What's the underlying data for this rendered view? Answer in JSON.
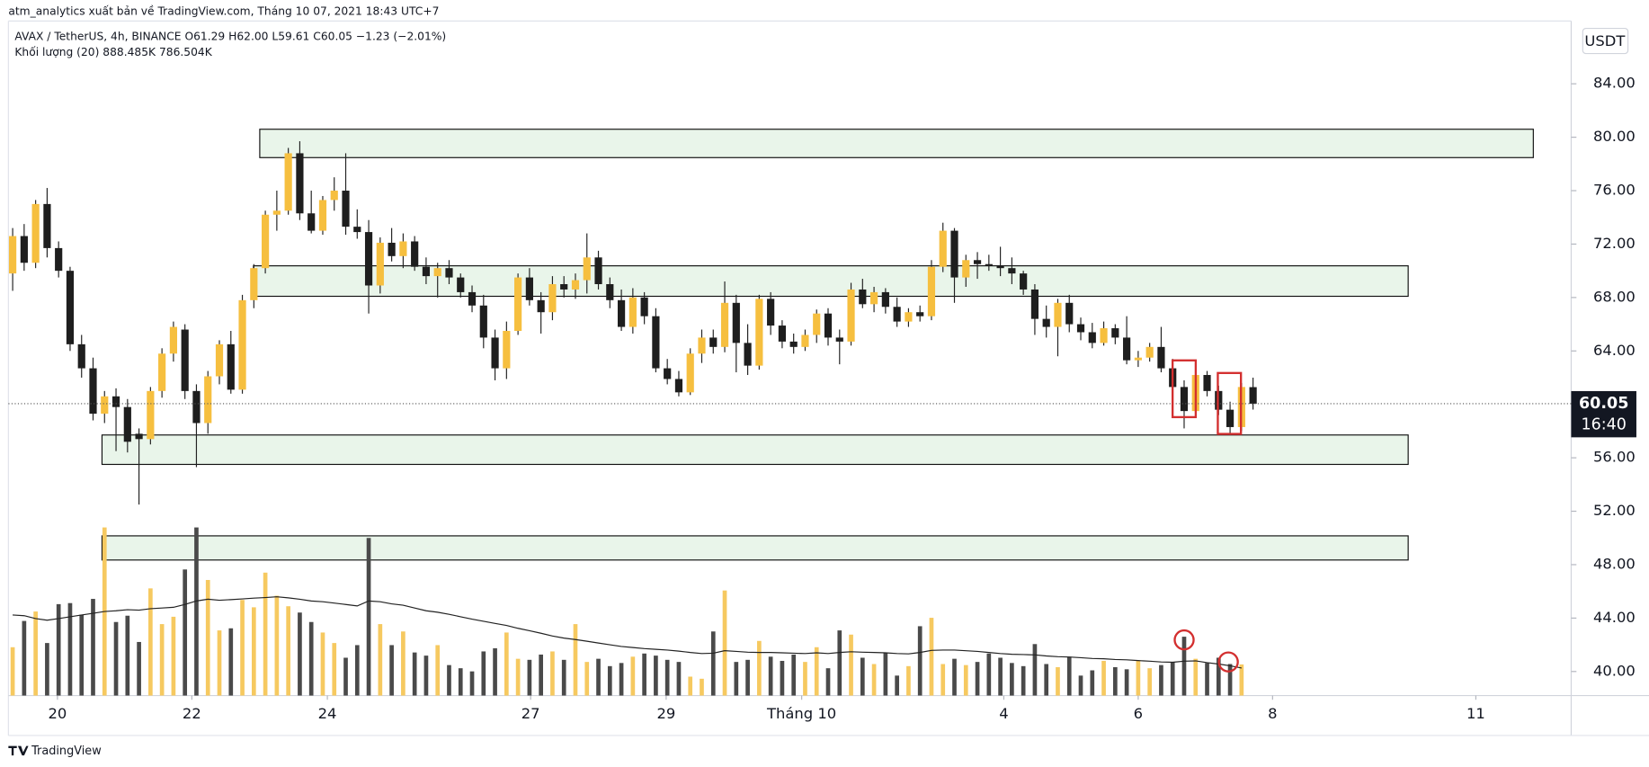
{
  "chart_data": {
    "type": "candlestick",
    "header": "atm_analytics xuất bản về TradingView.com, Tháng 10 07, 2021 18:43 UTC+7",
    "legend": "AVAX / TetherUS, 4h, BINANCE  O61.29 H62.00 L59.61 C60.05 −1.23 (−2.01%)",
    "volume_legend": "Khối lượng (20)  888.485K  786.504K",
    "currency": "USDT",
    "last_price_label": "60.05",
    "countdown": "16:40",
    "brand": "TradingView",
    "up_color": "#f6bf3f",
    "down_color": "#1e1e1e",
    "up_volume_color": "#f6c960",
    "down_volume_color": "#4a4a4a",
    "ma_color": "#222222",
    "ylim": [
      38.2,
      88.7
    ],
    "yticks": [
      {
        "value": 40,
        "label": "40.00"
      },
      {
        "value": 44,
        "label": "44.00"
      },
      {
        "value": 48,
        "label": "48.00"
      },
      {
        "value": 52,
        "label": "52.00"
      },
      {
        "value": 56,
        "label": "56.00"
      },
      {
        "value": 60,
        "label": "60.00"
      },
      {
        "value": 64,
        "label": "64.00"
      },
      {
        "value": 68,
        "label": "68.00"
      },
      {
        "value": 72,
        "label": "72.00"
      },
      {
        "value": 76,
        "label": "76.00"
      },
      {
        "value": 80,
        "label": "80.00"
      },
      {
        "value": 84,
        "label": "84.00"
      }
    ],
    "xlim": [
      -0.37,
      135.7
    ],
    "xticks": [
      {
        "value": 3.9,
        "label": "20"
      },
      {
        "value": 15.6,
        "label": "22"
      },
      {
        "value": 27.4,
        "label": "24"
      },
      {
        "value": 45.1,
        "label": "27"
      },
      {
        "value": 56.9,
        "label": "29"
      },
      {
        "value": 68.7,
        "label": "Tháng 10"
      },
      {
        "value": 86.3,
        "label": "4"
      },
      {
        "value": 98.0,
        "label": "6"
      },
      {
        "value": 109.7,
        "label": "8"
      },
      {
        "value": 127.4,
        "label": "11"
      }
    ],
    "volume_ylim": [
      0,
      6000
    ],
    "ohlc": [
      [
        69.8,
        73.2,
        68.5,
        72.6
      ],
      [
        72.6,
        73.5,
        70.0,
        70.6
      ],
      [
        70.6,
        75.3,
        70.2,
        75.0
      ],
      [
        75.0,
        76.2,
        71.0,
        71.7
      ],
      [
        71.7,
        72.2,
        69.5,
        70.0
      ],
      [
        70.0,
        70.3,
        64.0,
        64.5
      ],
      [
        64.5,
        65.2,
        62.0,
        62.7
      ],
      [
        62.7,
        63.5,
        58.8,
        59.3
      ],
      [
        59.3,
        61.0,
        58.6,
        60.6
      ],
      [
        60.6,
        61.2,
        56.5,
        59.8
      ],
      [
        59.8,
        60.4,
        56.4,
        57.2
      ],
      [
        57.8,
        58.2,
        52.5,
        57.4
      ],
      [
        57.4,
        61.3,
        57.0,
        61.0
      ],
      [
        61.0,
        64.2,
        60.5,
        63.8
      ],
      [
        63.8,
        66.2,
        63.2,
        65.8
      ],
      [
        65.6,
        66.0,
        60.4,
        61.0
      ],
      [
        61.0,
        61.5,
        55.3,
        58.6
      ],
      [
        58.6,
        62.5,
        57.8,
        62.1
      ],
      [
        62.1,
        64.8,
        61.5,
        64.5
      ],
      [
        64.5,
        65.5,
        60.8,
        61.1
      ],
      [
        61.1,
        68.2,
        60.8,
        67.8
      ],
      [
        67.8,
        70.5,
        67.2,
        70.2
      ],
      [
        70.2,
        74.5,
        69.8,
        74.2
      ],
      [
        74.2,
        76.0,
        73.0,
        74.5
      ],
      [
        74.5,
        79.2,
        74.2,
        78.8
      ],
      [
        78.8,
        79.7,
        73.8,
        74.3
      ],
      [
        74.3,
        76.0,
        72.8,
        73.0
      ],
      [
        73.0,
        75.6,
        72.7,
        75.3
      ],
      [
        75.3,
        77.0,
        74.5,
        76.0
      ],
      [
        76.0,
        78.8,
        72.7,
        73.3
      ],
      [
        73.3,
        74.6,
        72.4,
        72.9
      ],
      [
        72.9,
        73.8,
        66.8,
        68.9
      ],
      [
        68.9,
        72.5,
        68.3,
        72.1
      ],
      [
        72.1,
        73.2,
        70.7,
        71.1
      ],
      [
        71.1,
        72.8,
        70.2,
        72.2
      ],
      [
        72.2,
        72.6,
        70.0,
        70.3
      ],
      [
        70.3,
        71.0,
        69.0,
        69.6
      ],
      [
        69.6,
        70.6,
        68.0,
        70.2
      ],
      [
        70.2,
        70.8,
        69.0,
        69.5
      ],
      [
        69.5,
        69.8,
        68.0,
        68.4
      ],
      [
        68.4,
        68.9,
        66.9,
        67.4
      ],
      [
        67.4,
        68.2,
        64.2,
        65.0
      ],
      [
        65.0,
        65.6,
        61.8,
        62.7
      ],
      [
        62.7,
        66.2,
        61.9,
        65.5
      ],
      [
        65.5,
        69.8,
        65.2,
        69.5
      ],
      [
        69.5,
        70.2,
        67.4,
        67.8
      ],
      [
        67.8,
        68.4,
        65.3,
        66.9
      ],
      [
        66.9,
        69.6,
        66.3,
        69.0
      ],
      [
        69.0,
        69.6,
        68.0,
        68.6
      ],
      [
        68.6,
        69.8,
        67.9,
        69.3
      ],
      [
        69.3,
        72.8,
        68.3,
        71.0
      ],
      [
        71.0,
        71.5,
        68.6,
        69.0
      ],
      [
        69.0,
        69.5,
        67.2,
        67.8
      ],
      [
        67.8,
        68.6,
        65.5,
        65.8
      ],
      [
        65.8,
        68.7,
        65.3,
        68.0
      ],
      [
        68.0,
        68.4,
        66.0,
        66.6
      ],
      [
        66.6,
        67.2,
        62.4,
        62.7
      ],
      [
        62.7,
        63.4,
        61.5,
        61.9
      ],
      [
        61.9,
        62.5,
        60.6,
        60.9
      ],
      [
        60.9,
        64.2,
        60.7,
        63.8
      ],
      [
        63.8,
        65.6,
        63.1,
        65.0
      ],
      [
        65.0,
        65.6,
        63.8,
        64.3
      ],
      [
        64.3,
        69.2,
        63.9,
        67.6
      ],
      [
        67.6,
        68.2,
        62.4,
        64.6
      ],
      [
        64.6,
        66.0,
        62.2,
        62.9
      ],
      [
        62.9,
        68.2,
        62.6,
        67.9
      ],
      [
        67.9,
        68.4,
        65.2,
        65.9
      ],
      [
        65.9,
        66.3,
        64.2,
        64.7
      ],
      [
        64.7,
        65.3,
        63.8,
        64.3
      ],
      [
        64.3,
        65.6,
        64.0,
        65.2
      ],
      [
        65.2,
        67.1,
        64.6,
        66.8
      ],
      [
        66.8,
        67.2,
        64.4,
        65.0
      ],
      [
        65.0,
        65.6,
        63.0,
        64.7
      ],
      [
        64.7,
        69.1,
        64.4,
        68.6
      ],
      [
        68.6,
        69.4,
        67.2,
        67.5
      ],
      [
        67.5,
        68.8,
        66.9,
        68.4
      ],
      [
        68.4,
        68.7,
        66.8,
        67.3
      ],
      [
        67.3,
        68.0,
        65.8,
        66.2
      ],
      [
        66.2,
        67.2,
        65.8,
        66.9
      ],
      [
        66.9,
        67.4,
        66.2,
        66.6
      ],
      [
        66.6,
        70.8,
        66.3,
        70.3
      ],
      [
        70.3,
        73.6,
        69.9,
        73.0
      ],
      [
        73.0,
        73.2,
        67.6,
        69.5
      ],
      [
        69.5,
        71.2,
        68.8,
        70.8
      ],
      [
        70.8,
        71.4,
        69.4,
        70.5
      ],
      [
        70.5,
        71.2,
        70.0,
        70.4
      ],
      [
        70.4,
        71.8,
        69.6,
        70.2
      ],
      [
        70.2,
        71.0,
        69.0,
        69.8
      ],
      [
        69.8,
        70.0,
        68.2,
        68.6
      ],
      [
        68.6,
        69.0,
        65.2,
        66.4
      ],
      [
        66.4,
        67.4,
        65.0,
        65.8
      ],
      [
        65.8,
        67.9,
        63.6,
        67.6
      ],
      [
        67.6,
        68.2,
        65.4,
        66.0
      ],
      [
        66.0,
        66.5,
        64.8,
        65.4
      ],
      [
        65.4,
        66.1,
        64.2,
        64.6
      ],
      [
        64.6,
        66.2,
        64.4,
        65.7
      ],
      [
        65.7,
        66.0,
        64.5,
        65.0
      ],
      [
        65.0,
        66.6,
        63.0,
        63.3
      ],
      [
        63.3,
        64.0,
        62.8,
        63.5
      ],
      [
        63.5,
        64.6,
        63.2,
        64.3
      ],
      [
        64.3,
        65.8,
        62.4,
        62.7
      ],
      [
        62.7,
        63.4,
        61.0,
        61.3
      ],
      [
        61.3,
        61.8,
        58.2,
        59.5
      ],
      [
        59.5,
        62.6,
        59.3,
        62.2
      ],
      [
        62.2,
        62.5,
        60.6,
        61.0
      ],
      [
        61.0,
        61.4,
        59.2,
        59.6
      ],
      [
        59.6,
        60.2,
        57.7,
        58.3
      ],
      [
        58.3,
        61.6,
        58.0,
        61.3
      ],
      [
        61.29,
        62.0,
        59.61,
        60.05
      ]
    ],
    "volume": [
      1380,
      2130,
      2400,
      1500,
      2610,
      2640,
      2310,
      2760,
      4800,
      2100,
      2280,
      1530,
      3060,
      2040,
      2250,
      3600,
      4800,
      3300,
      1860,
      1920,
      2730,
      2520,
      3510,
      2850,
      2550,
      2370,
      2100,
      1800,
      1500,
      1080,
      1440,
      4500,
      2040,
      1440,
      1830,
      1230,
      1140,
      1440,
      870,
      780,
      690,
      1260,
      1350,
      1800,
      1050,
      1020,
      1170,
      1260,
      1020,
      2040,
      960,
      1050,
      840,
      930,
      1110,
      1200,
      1140,
      1020,
      960,
      540,
      480,
      1830,
      3000,
      960,
      1020,
      1560,
      1110,
      990,
      1170,
      960,
      1380,
      780,
      1860,
      1740,
      1080,
      900,
      1230,
      570,
      840,
      1980,
      2220,
      900,
      1050,
      870,
      960,
      1200,
      1080,
      930,
      840,
      1470,
      900,
      810,
      1110,
      570,
      720,
      990,
      810,
      750,
      990,
      780,
      870,
      960,
      1680,
      1050,
      930,
      1080,
      900,
      888.485
    ],
    "volume_ma": [
      2300,
      2280,
      2200,
      2150,
      2200,
      2250,
      2300,
      2350,
      2400,
      2420,
      2450,
      2440,
      2480,
      2500,
      2520,
      2600,
      2700,
      2750,
      2720,
      2740,
      2760,
      2780,
      2800,
      2820,
      2790,
      2750,
      2700,
      2680,
      2640,
      2600,
      2560,
      2700,
      2680,
      2620,
      2580,
      2500,
      2420,
      2380,
      2320,
      2250,
      2180,
      2120,
      2060,
      2000,
      1920,
      1850,
      1780,
      1700,
      1640,
      1600,
      1550,
      1500,
      1450,
      1400,
      1370,
      1340,
      1320,
      1300,
      1270,
      1230,
      1200,
      1210,
      1280,
      1260,
      1240,
      1230,
      1230,
      1220,
      1210,
      1200,
      1220,
      1200,
      1230,
      1250,
      1240,
      1230,
      1220,
      1200,
      1190,
      1230,
      1290,
      1300,
      1300,
      1280,
      1260,
      1230,
      1200,
      1180,
      1170,
      1160,
      1130,
      1110,
      1100,
      1080,
      1060,
      1050,
      1030,
      1020,
      1000,
      980,
      960,
      950,
      980,
      990,
      940,
      900,
      850,
      786.504
    ]
  }
}
